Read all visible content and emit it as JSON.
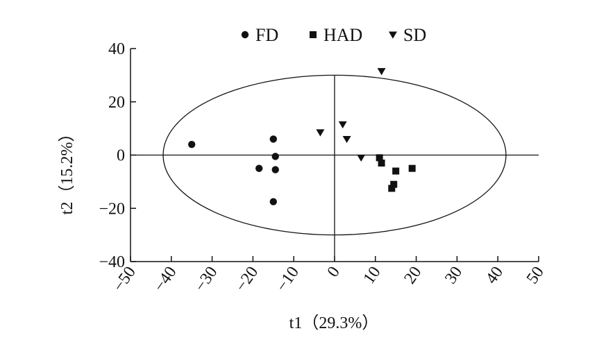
{
  "chart_data": {
    "type": "scatter",
    "title": "",
    "xlabel": "t1（29.3%）",
    "ylabel": "t2（15.2%）",
    "xlim": [
      -50,
      50
    ],
    "ylim": [
      -40,
      40
    ],
    "xticks": [
      -50,
      -40,
      -30,
      -20,
      -10,
      0,
      10,
      20,
      30,
      40,
      50
    ],
    "yticks": [
      -40,
      -20,
      0,
      20,
      40
    ],
    "xtick_labels": [
      "−50",
      "−40",
      "−30",
      "−20",
      "−10",
      "0",
      "10",
      "20",
      "30",
      "40",
      "50"
    ],
    "ytick_labels": [
      "−40",
      "−20",
      "0",
      "20",
      "40"
    ],
    "grid": false,
    "reference_lines": {
      "x": 0,
      "y": 0
    },
    "confidence_ellipse": {
      "center": [
        0,
        0
      ],
      "semi_axis_x": 42,
      "semi_axis_y": 30
    },
    "legend": {
      "placement": "top-center"
    },
    "series": [
      {
        "name": "FD",
        "marker": "circle",
        "points": [
          [
            -35,
            4
          ],
          [
            -15,
            6
          ],
          [
            -14.5,
            -0.5
          ],
          [
            -18.5,
            -5
          ],
          [
            -14.5,
            -5.5
          ],
          [
            -15,
            -17.5
          ]
        ]
      },
      {
        "name": "HAD",
        "marker": "square",
        "points": [
          [
            11,
            -1
          ],
          [
            11.5,
            -3
          ],
          [
            15,
            -6
          ],
          [
            19,
            -5
          ],
          [
            14.5,
            -11
          ],
          [
            14,
            -12.5
          ]
        ]
      },
      {
        "name": "SD",
        "marker": "triangle-down",
        "points": [
          [
            11.5,
            31.5
          ],
          [
            2,
            11.5
          ],
          [
            3,
            6
          ],
          [
            -3.5,
            8.5
          ],
          [
            6.5,
            -1
          ]
        ]
      }
    ]
  }
}
